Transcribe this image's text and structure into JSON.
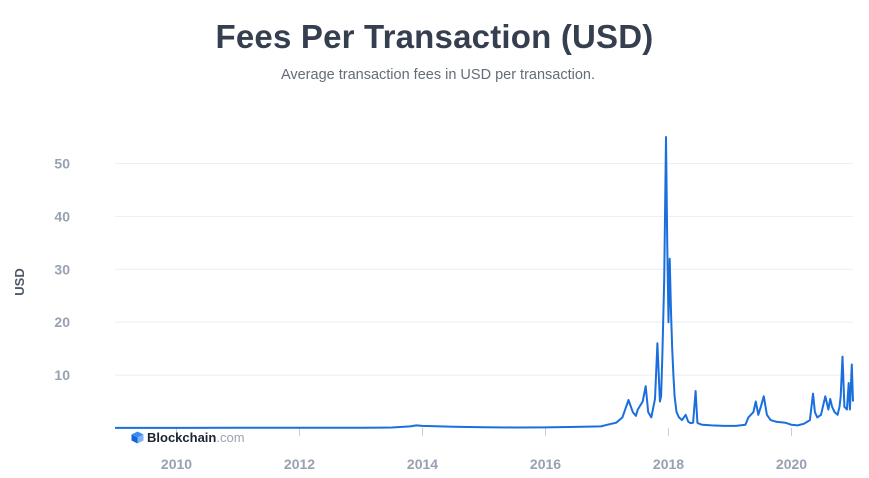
{
  "header": {
    "title": "Fees Per Transaction (USD)",
    "subtitle": "Average transaction fees in USD per transaction."
  },
  "logo": {
    "brand": "Blockchain",
    "suffix": ".com",
    "icon": "blockchain-cube-icon"
  },
  "colors": {
    "line": "#1a6fdc",
    "grid": "#eceef1",
    "tick": "#98a1b0"
  },
  "chart_data": {
    "type": "line",
    "title": "Fees Per Transaction (USD)",
    "subtitle": "Average transaction fees in USD per transaction.",
    "xlabel": "",
    "ylabel": "USD",
    "xlim": [
      2009.0,
      2021.0
    ],
    "ylim": [
      0,
      55
    ],
    "grid": true,
    "legend": "none",
    "x_ticks": [
      2010,
      2012,
      2014,
      2016,
      2018,
      2020
    ],
    "x_tick_labels": [
      "2010",
      "2012",
      "2014",
      "2016",
      "2018",
      "2020"
    ],
    "y_ticks": [
      10,
      20,
      30,
      40,
      50
    ],
    "y_tick_labels": [
      "10",
      "20",
      "30",
      "40",
      "50"
    ],
    "series": [
      {
        "x": [
          2009.0,
          2010.0,
          2011.0,
          2012.0,
          2012.5,
          2013.0,
          2013.5,
          2013.8,
          2013.9,
          2014.0,
          2014.5,
          2015.0,
          2015.5,
          2016.0,
          2016.5,
          2016.9,
          2017.0,
          2017.15,
          2017.25,
          2017.35,
          2017.42,
          2017.47,
          2017.5,
          2017.58,
          2017.63,
          2017.67,
          2017.72,
          2017.78,
          2017.82,
          2017.86,
          2017.88,
          2017.9,
          2017.93,
          2017.96,
          2017.98,
          2018.0,
          2018.02,
          2018.04,
          2018.06,
          2018.08,
          2018.1,
          2018.13,
          2018.17,
          2018.22,
          2018.28,
          2018.32,
          2018.36,
          2018.4,
          2018.44,
          2018.47,
          2018.5,
          2018.55,
          2018.7,
          2018.9,
          2019.1,
          2019.25,
          2019.3,
          2019.38,
          2019.42,
          2019.46,
          2019.5,
          2019.55,
          2019.6,
          2019.66,
          2019.75,
          2019.9,
          2020.0,
          2020.1,
          2020.2,
          2020.3,
          2020.35,
          2020.38,
          2020.42,
          2020.48,
          2020.55,
          2020.6,
          2020.63,
          2020.66,
          2020.7,
          2020.75,
          2020.78,
          2020.8,
          2020.83,
          2020.86,
          2020.9,
          2020.93,
          2020.95,
          2020.98,
          2021.0
        ],
        "values": [
          0.01,
          0.02,
          0.05,
          0.05,
          0.05,
          0.05,
          0.1,
          0.3,
          0.5,
          0.4,
          0.25,
          0.15,
          0.1,
          0.12,
          0.2,
          0.3,
          0.6,
          1.0,
          2.0,
          5.3,
          3.0,
          2.3,
          3.5,
          5.0,
          7.9,
          3.0,
          2.0,
          5.5,
          16.0,
          5.0,
          6.0,
          14.0,
          28.0,
          55.0,
          34.0,
          20.0,
          32.0,
          22.0,
          15.0,
          10.0,
          6.0,
          3.0,
          2.0,
          1.5,
          2.5,
          1.2,
          0.9,
          1.0,
          7.0,
          1.0,
          0.8,
          0.6,
          0.5,
          0.4,
          0.4,
          0.6,
          2.0,
          3.0,
          5.0,
          2.5,
          4.0,
          6.0,
          2.5,
          1.5,
          1.2,
          1.0,
          0.6,
          0.5,
          0.8,
          1.5,
          6.5,
          3.0,
          2.0,
          2.5,
          6.0,
          3.5,
          5.5,
          4.0,
          3.0,
          2.5,
          4.0,
          6.0,
          13.5,
          4.0,
          3.5,
          8.5,
          3.5,
          12.0,
          5.0
        ]
      }
    ]
  }
}
